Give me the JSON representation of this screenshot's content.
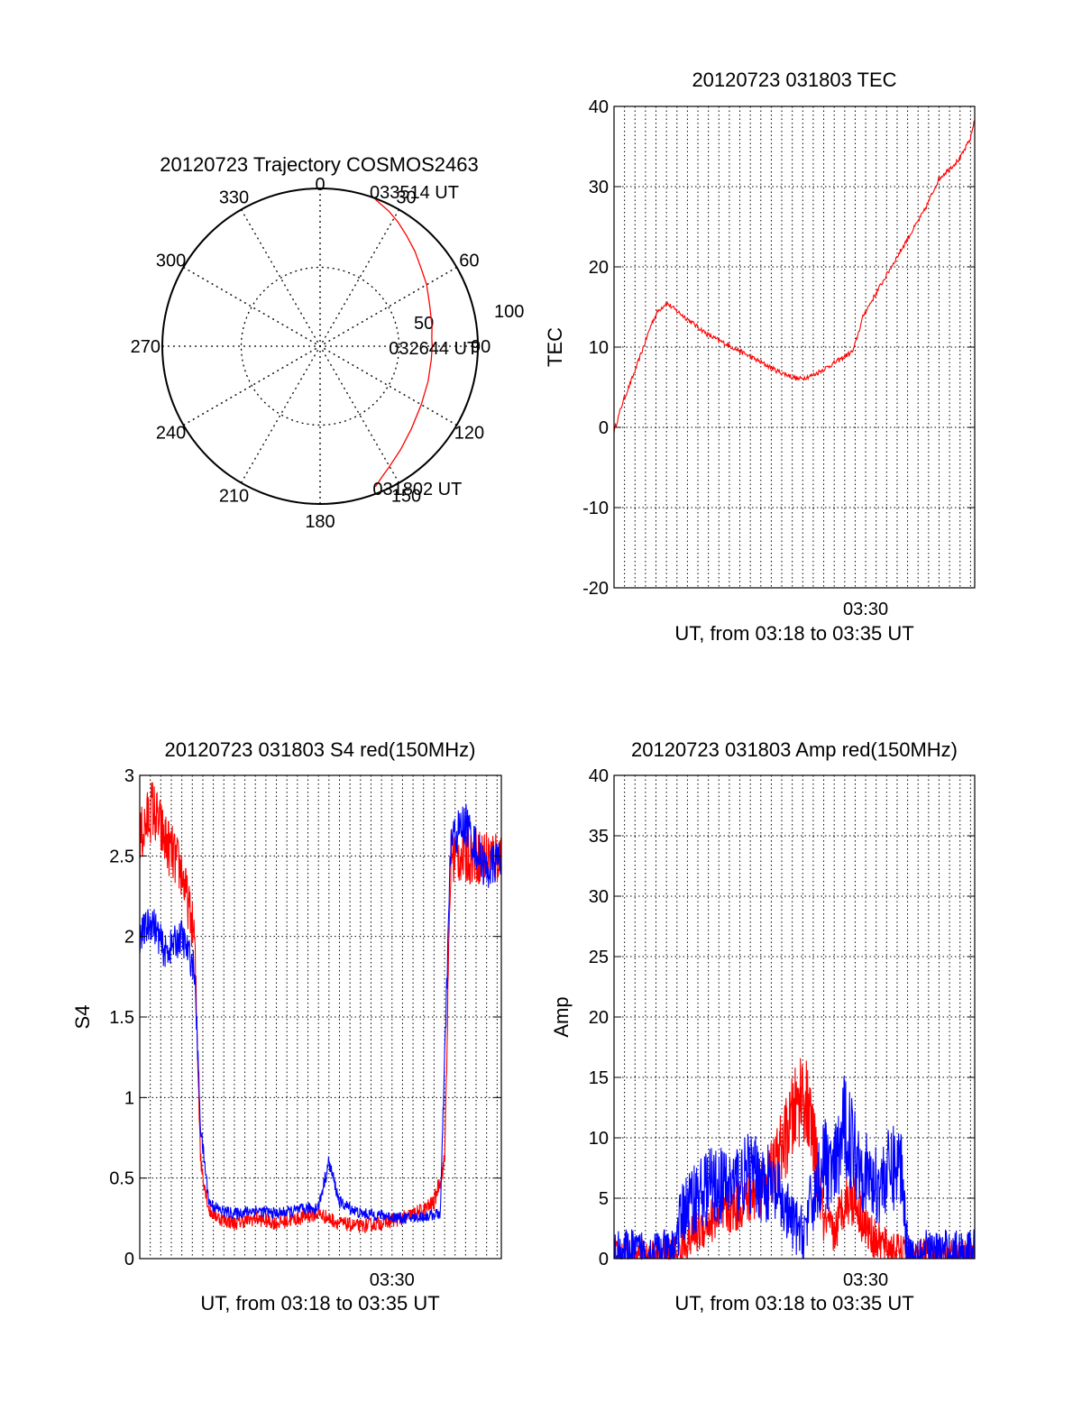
{
  "colors": {
    "red": "#ff0000",
    "blue": "#0000ff",
    "grid": "#000000",
    "background": "#ffffff"
  },
  "chart_data": [
    {
      "type": "polar",
      "title": "20120723 Trajectory COSMOS2463",
      "azimuth_labels": [
        "0",
        "30",
        "60",
        "90",
        "120",
        "150",
        "180",
        "210",
        "240",
        "270",
        "300",
        "330"
      ],
      "radial_labels": [
        "50",
        "100"
      ],
      "radial_values": [
        50,
        100
      ],
      "rmax": 100,
      "grid": true,
      "series": [
        {
          "color": "red",
          "azimuth_deg": [
            158.5,
            155,
            150,
            142,
            132,
            120,
            108,
            97,
            90,
            86,
            80,
            70,
            60,
            52,
            45,
            38,
            32,
            27,
            23,
            20.5
          ],
          "radius": [
            95.7,
            92,
            88,
            83,
            78,
            74,
            72,
            71,
            71,
            71,
            72,
            74,
            78,
            81,
            85,
            89,
            93,
            96,
            98,
            99.5
          ]
        }
      ],
      "annotations": [
        {
          "text": "033514 UT",
          "azimuth_deg": 20.5,
          "radius": 99.5
        },
        {
          "text": "032644 UT",
          "azimuth_deg": 90,
          "radius": 71
        },
        {
          "text": "031802 UT",
          "azimuth_deg": 158.5,
          "radius": 95.7
        }
      ]
    },
    {
      "type": "line",
      "title": "20120723 031803 TEC",
      "xlabel": "UT, from 03:18 to 03:35 UT",
      "ylabel": "TEC",
      "x_tick_labels": [
        "03:30"
      ],
      "x_tick_minutes": [
        30
      ],
      "xlim_minutes": [
        18.0,
        35.2
      ],
      "ylim": [
        -20,
        40
      ],
      "yticks": [
        -20,
        -10,
        0,
        10,
        20,
        30,
        40
      ],
      "grid": true,
      "series": [
        {
          "color": "red",
          "x_minutes": [
            18.0,
            18.4,
            18.7,
            19.0,
            19.4,
            19.8,
            20.1,
            20.5,
            21.5,
            22.5,
            24.0,
            25.8,
            26.8,
            27.5,
            28.5,
            29.1,
            29.4,
            29.9,
            31.0,
            32.0,
            32.8,
            33.5,
            34.5,
            35.0,
            35.2
          ],
          "values": [
            -0.5,
            3.0,
            5.0,
            7.0,
            10.0,
            13.0,
            14.5,
            15.5,
            13.5,
            11.5,
            9.5,
            7.0,
            6.0,
            6.5,
            8.0,
            9.0,
            9.5,
            14.0,
            19.0,
            23.5,
            27.0,
            31.0,
            33.5,
            36.0,
            38.5
          ]
        }
      ]
    },
    {
      "type": "line",
      "title": "20120723 031803 S4 red(150MHz)",
      "xlabel": "UT, from 03:18 to 03:35 UT",
      "ylabel": "S4",
      "x_tick_labels": [
        "03:30"
      ],
      "x_tick_minutes": [
        30
      ],
      "xlim_minutes": [
        18.0,
        35.2
      ],
      "ylim": [
        0,
        3
      ],
      "yticks": [
        0,
        0.5,
        1,
        1.5,
        2,
        2.5,
        3
      ],
      "ytick_labels": [
        "0",
        "0.5",
        "1",
        "1.5",
        "2",
        "2.5",
        "3"
      ],
      "grid": true,
      "series": [
        {
          "color": "red",
          "x_minutes": [
            18.0,
            18.6,
            19.2,
            20.0,
            20.6,
            20.9,
            21.3,
            21.8,
            22.5,
            23.5,
            24.5,
            25.5,
            26.5,
            27.5,
            28.5,
            29.5,
            30.5,
            31.5,
            32.0,
            32.5,
            32.8
          ],
          "values": [
            2.6,
            2.8,
            2.6,
            2.4,
            2.0,
            0.6,
            0.3,
            0.25,
            0.22,
            0.25,
            0.22,
            0.25,
            0.28,
            0.22,
            0.2,
            0.22,
            0.25,
            0.3,
            0.35,
            0.6,
            2.5
          ],
          "noise": 0.08
        },
        {
          "color": "blue",
          "x_minutes": [
            18.0,
            18.6,
            19.2,
            20.0,
            20.6,
            20.9,
            21.3,
            21.8,
            22.5,
            23.5,
            24.5,
            25.5,
            26.5,
            27.0,
            27.5,
            28.5,
            29.5,
            30.5,
            31.5,
            32.3,
            32.8,
            33.5,
            34.5,
            35.2
          ],
          "values": [
            2.0,
            2.1,
            1.9,
            2.0,
            1.8,
            0.8,
            0.35,
            0.3,
            0.28,
            0.3,
            0.28,
            0.3,
            0.32,
            0.6,
            0.35,
            0.28,
            0.27,
            0.25,
            0.26,
            0.28,
            2.6,
            2.7,
            2.4,
            2.5
          ],
          "noise": 0.06
        }
      ]
    },
    {
      "type": "line",
      "title": "20120723 031803 Amp red(150MHz)",
      "xlabel": "UT, from 03:18 to 03:35 UT",
      "ylabel": "Amp",
      "x_tick_labels": [
        "03:30"
      ],
      "x_tick_minutes": [
        30
      ],
      "xlim_minutes": [
        18.0,
        35.2
      ],
      "ylim": [
        0,
        40
      ],
      "yticks": [
        0,
        5,
        10,
        15,
        20,
        25,
        30,
        35,
        40
      ],
      "grid": true,
      "series": [
        {
          "color": "red",
          "x_minutes": [
            18.0,
            20.8,
            21.5,
            22.5,
            23.5,
            24.5,
            25.5,
            26.2,
            27.0,
            27.5,
            28.0,
            28.5,
            29.0,
            29.5,
            30.0,
            30.5,
            31.2,
            32.0,
            35.2
          ],
          "values": [
            0.2,
            0.3,
            1.5,
            3.0,
            4.0,
            5.0,
            7.0,
            10.0,
            14.0,
            10.0,
            3.0,
            2.0,
            5.0,
            5.0,
            2.5,
            1.5,
            0.8,
            0.3,
            0.2
          ],
          "noise": 3.5
        },
        {
          "color": "blue",
          "x_minutes": [
            18.0,
            20.8,
            21.3,
            21.8,
            22.5,
            23.5,
            24.5,
            25.5,
            26.5,
            27.0,
            27.5,
            28.0,
            28.5,
            29.0,
            29.5,
            30.0,
            30.5,
            31.0,
            31.7,
            32.0,
            35.2
          ],
          "values": [
            0.5,
            0.5,
            4.0,
            5.0,
            6.0,
            6.0,
            7.0,
            6.0,
            3.0,
            2.0,
            5.0,
            8.0,
            7.0,
            11.0,
            9.0,
            7.0,
            6.0,
            7.0,
            8.0,
            0.5,
            0.5
          ],
          "noise": 4.5
        }
      ]
    }
  ]
}
